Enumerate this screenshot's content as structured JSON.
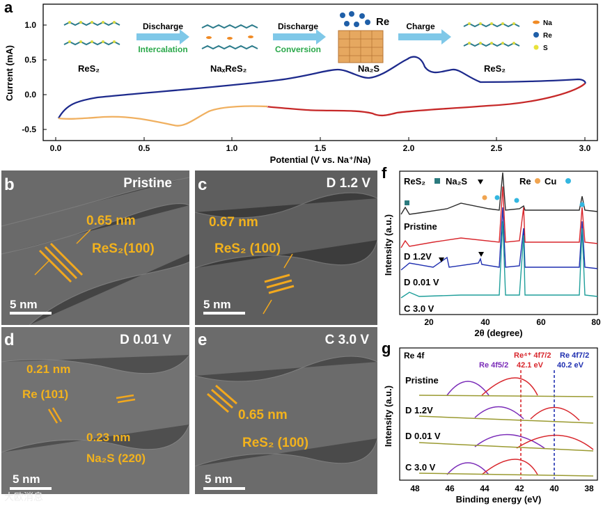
{
  "panel_a": {
    "letter": "a",
    "ylabel": "Current (mA)",
    "xlabel": "Potential (V vs. Na⁺/Na)",
    "x_ticks": [
      "0.0",
      "0.5",
      "1.0",
      "1.5",
      "2.0",
      "2.5",
      "3.0"
    ],
    "y_ticks": [
      "1.0",
      "0.5",
      "0.0",
      "-0.5"
    ],
    "schematic": {
      "stage1": "ReS₂",
      "stage2": "NaₓReS₂",
      "stage3": "Na₂S",
      "stage3_extra": "Re",
      "stage4": "ReS₂",
      "arrow1_top": "Discharge",
      "arrow1_bottom": "Intercalation",
      "arrow2_top": "Discharge",
      "arrow2_bottom": "Conversion",
      "arrow3_top": "Charge",
      "legend": [
        {
          "label": "Na",
          "color": "#f08a24"
        },
        {
          "label": "Re",
          "color": "#1f5fa8"
        },
        {
          "label": "S",
          "color": "#e8e23a"
        }
      ]
    }
  },
  "panel_b": {
    "letter": "b",
    "title": "Pristine",
    "spacing": "0.65 nm",
    "plane": "ReS₂(100)",
    "scale": "5 nm"
  },
  "panel_c": {
    "letter": "c",
    "title": "D 1.2 V",
    "spacing": "0.67 nm",
    "plane": "ReS₂ (100)",
    "scale": "5 nm"
  },
  "panel_d": {
    "letter": "d",
    "title": "D 0.01 V",
    "spacing1": "0.21 nm",
    "plane1": "Re (101)",
    "spacing2": "0.23 nm",
    "plane2": "Na₂S (220)",
    "scale": "5 nm"
  },
  "panel_e": {
    "letter": "e",
    "title": "C 3.0 V",
    "spacing": "0.65 nm",
    "plane": "ReS₂ (100)",
    "scale": "5 nm"
  },
  "panel_f": {
    "letter": "f",
    "ylabel": "Intensity (a.u.)",
    "xlabel": "2θ (degree)",
    "x_ticks": [
      "20",
      "40",
      "60",
      "80"
    ],
    "legend": [
      "ReS₂",
      "Na₂S",
      "Re",
      "Cu"
    ],
    "traces": [
      "Pristine",
      "D 1.2V",
      "D 0.01 V",
      "C 3.0 V"
    ],
    "colors": {
      "pristine": "#2b2b2b",
      "d12": "#d8262c",
      "d001": "#1f2fb0",
      "c30": "#1e9e9a"
    }
  },
  "panel_g": {
    "letter": "g",
    "corner": "Re 4f",
    "ylabel": "Intensity (a.u.)",
    "xlabel": "Binding energy (eV)",
    "x_ticks": [
      "48",
      "46",
      "44",
      "42",
      "40",
      "38"
    ],
    "peak_label1": "Re 4f5/2",
    "peak_label2": "Re⁴⁺ 4f7/2",
    "peak_label2_value": "42.1 eV",
    "peak_label3": "Re 4f7/2",
    "peak_label3_value": "40.2 eV",
    "traces": [
      "Pristine",
      "D 1.2V",
      "D 0.01 V",
      "C 3.0 V"
    ]
  },
  "watermark": "大欧消息"
}
